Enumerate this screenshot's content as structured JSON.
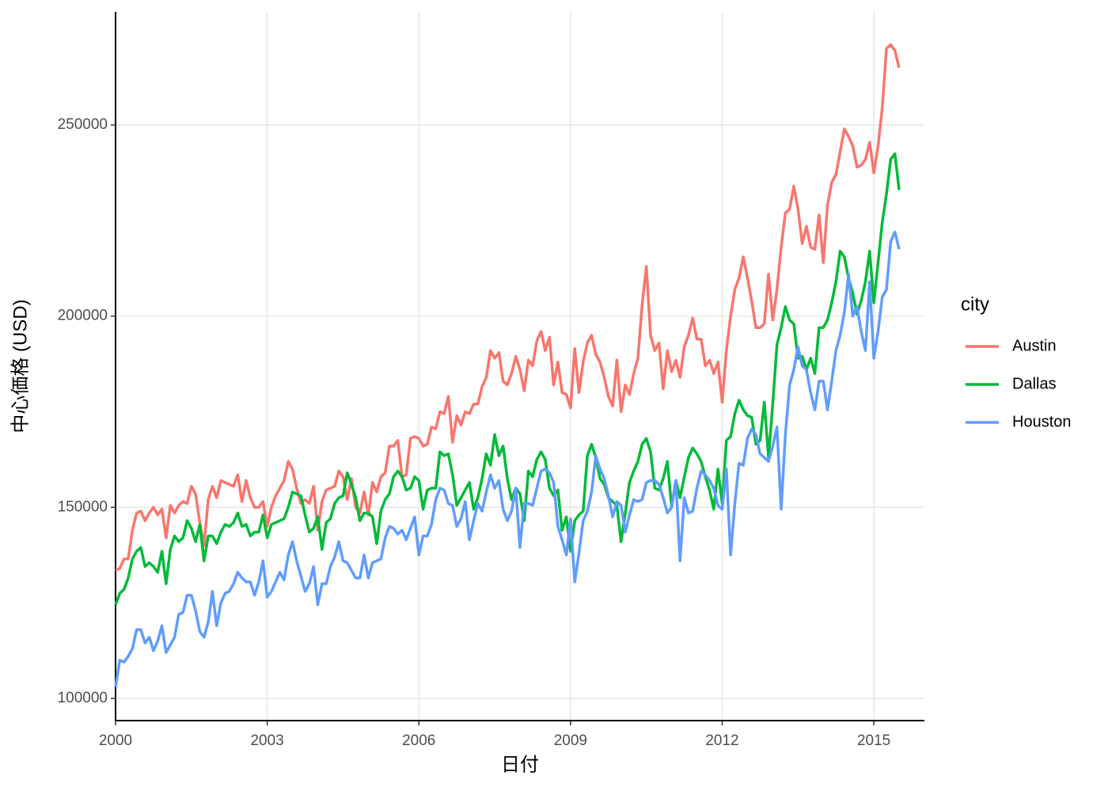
{
  "chart_data": {
    "type": "line",
    "x_label": "日付",
    "y_label": "中心価格 (USD)",
    "legend_title": "city",
    "grid": true,
    "legend_position": "right",
    "xlim": [
      2000,
      2016
    ],
    "xticks": [
      2000,
      2003,
      2006,
      2009,
      2012,
      2015
    ],
    "ylim": [
      94200,
      279600
    ],
    "yticks": [
      100000,
      150000,
      200000,
      250000
    ],
    "x": [
      2000,
      2000.0833,
      2000.1667,
      2000.25,
      2000.3333,
      2000.4167,
      2000.5,
      2000.5833,
      2000.6667,
      2000.75,
      2000.8333,
      2000.9167,
      2001,
      2001.0833,
      2001.1667,
      2001.25,
      2001.3333,
      2001.4167,
      2001.5,
      2001.5833,
      2001.6667,
      2001.75,
      2001.8333,
      2001.9167,
      2002,
      2002.0833,
      2002.1667,
      2002.25,
      2002.3333,
      2002.4167,
      2002.5,
      2002.5833,
      2002.6667,
      2002.75,
      2002.8333,
      2002.9167,
      2003,
      2003.0833,
      2003.1667,
      2003.25,
      2003.3333,
      2003.4167,
      2003.5,
      2003.5833,
      2003.6667,
      2003.75,
      2003.8333,
      2003.9167,
      2004,
      2004.0833,
      2004.1667,
      2004.25,
      2004.3333,
      2004.4167,
      2004.5,
      2004.5833,
      2004.6667,
      2004.75,
      2004.8333,
      2004.9167,
      2005,
      2005.0833,
      2005.1667,
      2005.25,
      2005.3333,
      2005.4167,
      2005.5,
      2005.5833,
      2005.6667,
      2005.75,
      2005.8333,
      2005.9167,
      2006,
      2006.0833,
      2006.1667,
      2006.25,
      2006.3333,
      2006.4167,
      2006.5,
      2006.5833,
      2006.6667,
      2006.75,
      2006.8333,
      2006.9167,
      2007,
      2007.0833,
      2007.1667,
      2007.25,
      2007.3333,
      2007.4167,
      2007.5,
      2007.5833,
      2007.6667,
      2007.75,
      2007.8333,
      2007.9167,
      2008,
      2008.0833,
      2008.1667,
      2008.25,
      2008.3333,
      2008.4167,
      2008.5,
      2008.5833,
      2008.6667,
      2008.75,
      2008.8333,
      2008.9167,
      2009,
      2009.0833,
      2009.1667,
      2009.25,
      2009.3333,
      2009.4167,
      2009.5,
      2009.5833,
      2009.6667,
      2009.75,
      2009.8333,
      2009.9167,
      2010,
      2010.0833,
      2010.1667,
      2010.25,
      2010.3333,
      2010.4167,
      2010.5,
      2010.5833,
      2010.6667,
      2010.75,
      2010.8333,
      2010.9167,
      2011,
      2011.0833,
      2011.1667,
      2011.25,
      2011.3333,
      2011.4167,
      2011.5,
      2011.5833,
      2011.6667,
      2011.75,
      2011.8333,
      2011.9167,
      2012,
      2012.0833,
      2012.1667,
      2012.25,
      2012.3333,
      2012.4167,
      2012.5,
      2012.5833,
      2012.6667,
      2012.75,
      2012.8333,
      2012.9167,
      2013,
      2013.0833,
      2013.1667,
      2013.25,
      2013.3333,
      2013.4167,
      2013.5,
      2013.5833,
      2013.6667,
      2013.75,
      2013.8333,
      2013.9167,
      2014,
      2014.0833,
      2014.1667,
      2014.25,
      2014.3333,
      2014.4167,
      2014.5,
      2014.5833,
      2014.6667,
      2014.75,
      2014.8333,
      2014.9167,
      2015,
      2015.0833,
      2015.1667,
      2015.25,
      2015.3333,
      2015.4167,
      2015.5
    ],
    "series": [
      {
        "name": "Austin",
        "color": "#F8766D",
        "values": [
          133500,
          134000,
          136500,
          136500,
          144000,
          148500,
          149000,
          146500,
          148500,
          150000,
          148000,
          149500,
          142000,
          150500,
          148500,
          150500,
          151500,
          151000,
          155500,
          153500,
          146000,
          140000,
          152000,
          155500,
          152500,
          157000,
          156500,
          156000,
          155500,
          158500,
          151500,
          157000,
          152500,
          150000,
          150000,
          151500,
          145000,
          150000,
          153000,
          155000,
          157000,
          162000,
          160000,
          155000,
          151000,
          152000,
          151000,
          155500,
          144000,
          151500,
          154500,
          155000,
          155500,
          159500,
          158000,
          152000,
          157500,
          150000,
          148500,
          154000,
          148000,
          156500,
          154000,
          158000,
          159000,
          166000,
          166000,
          167500,
          158000,
          158500,
          168000,
          168500,
          168000,
          166000,
          166500,
          171000,
          170500,
          175000,
          174500,
          179000,
          167000,
          174000,
          171500,
          175000,
          174500,
          177000,
          177000,
          181500,
          184000,
          191000,
          189000,
          190500,
          183000,
          182000,
          185000,
          189500,
          186000,
          180500,
          188500,
          187000,
          193500,
          196000,
          191000,
          194500,
          182000,
          188000,
          180000,
          179500,
          176000,
          191500,
          180000,
          188000,
          193000,
          195000,
          190000,
          188000,
          184000,
          179000,
          176500,
          188500,
          175000,
          182000,
          179500,
          185000,
          189000,
          203000,
          213000,
          195000,
          191000,
          193000,
          181000,
          191000,
          185500,
          188500,
          184000,
          192000,
          195000,
          199500,
          194000,
          194000,
          187000,
          188500,
          185000,
          188000,
          177500,
          191000,
          200000,
          207000,
          210000,
          215500,
          210000,
          204000,
          197000,
          197000,
          198000,
          211000,
          199000,
          207000,
          218000,
          227000,
          228000,
          234000,
          228000,
          219000,
          223500,
          218000,
          217500,
          226500,
          214000,
          229000,
          235000,
          237000,
          243000,
          249000,
          247000,
          244500,
          239000,
          239500,
          241000,
          245500,
          237500,
          244500,
          254500,
          270000,
          271000,
          269500,
          265000
        ]
      },
      {
        "name": "Dallas",
        "color": "#00BA38",
        "values": [
          124500,
          127500,
          128500,
          131500,
          136500,
          138500,
          139500,
          134500,
          135500,
          134500,
          133000,
          138500,
          130000,
          139000,
          142500,
          141000,
          142000,
          146500,
          144500,
          141000,
          145500,
          136000,
          142500,
          142500,
          140500,
          143500,
          145500,
          145000,
          146000,
          148500,
          145000,
          145500,
          142500,
          143500,
          143500,
          148000,
          142000,
          145500,
          146000,
          146500,
          147000,
          150000,
          154000,
          153500,
          153000,
          148000,
          143500,
          144500,
          147500,
          139000,
          146000,
          147000,
          151000,
          152500,
          153000,
          159000,
          156000,
          152500,
          146500,
          148500,
          148500,
          147500,
          140500,
          149000,
          152000,
          153500,
          158000,
          159500,
          158000,
          154500,
          155000,
          158000,
          157000,
          149500,
          154500,
          155000,
          155000,
          164500,
          163500,
          164000,
          158500,
          150500,
          152500,
          154500,
          156500,
          149500,
          152500,
          157500,
          164000,
          161000,
          169000,
          163500,
          166000,
          157500,
          152000,
          155000,
          153500,
          146500,
          159500,
          158000,
          162500,
          164500,
          162500,
          155000,
          153000,
          154500,
          144000,
          147500,
          138500,
          146500,
          148000,
          149000,
          163500,
          166500,
          163000,
          157500,
          156000,
          152500,
          151500,
          150500,
          141000,
          148500,
          156500,
          159500,
          162000,
          166500,
          168000,
          164500,
          155000,
          154500,
          157500,
          162000,
          150000,
          157000,
          152500,
          158000,
          163000,
          165500,
          164000,
          162000,
          158000,
          154500,
          149500,
          160000,
          151000,
          167500,
          168500,
          174500,
          178000,
          175500,
          174000,
          173500,
          166500,
          167500,
          177500,
          163000,
          177000,
          192500,
          197000,
          202500,
          199000,
          198000,
          189000,
          189500,
          186000,
          189000,
          185000,
          197000,
          197000,
          199000,
          203500,
          209000,
          217000,
          215500,
          210000,
          206000,
          200500,
          204000,
          209000,
          217000,
          203500,
          214000,
          224500,
          232000,
          241000,
          242500,
          233000
        ]
      },
      {
        "name": "Houston",
        "color": "#619CFF",
        "values": [
          103000,
          110000,
          109500,
          111000,
          113000,
          118000,
          118000,
          114500,
          116000,
          112500,
          115000,
          119000,
          112000,
          114000,
          116000,
          122000,
          122500,
          127000,
          127000,
          123000,
          117500,
          116000,
          120000,
          128000,
          119000,
          125000,
          127500,
          128000,
          130000,
          133000,
          131500,
          130500,
          130500,
          127000,
          130500,
          136000,
          126500,
          128000,
          130500,
          133000,
          131000,
          137500,
          141000,
          136000,
          132000,
          128000,
          130000,
          134500,
          124500,
          130000,
          130000,
          134500,
          137000,
          141000,
          136000,
          135500,
          133500,
          131500,
          131500,
          137500,
          131500,
          135500,
          136000,
          136500,
          142000,
          145000,
          144500,
          143000,
          144000,
          141500,
          144500,
          147500,
          137500,
          142500,
          142500,
          145500,
          152000,
          155000,
          154500,
          151000,
          150500,
          145000,
          147000,
          151500,
          141500,
          146500,
          151000,
          149000,
          154000,
          158500,
          155000,
          157000,
          149500,
          146500,
          149000,
          155000,
          139500,
          151000,
          151000,
          150500,
          155000,
          159500,
          160000,
          159000,
          156500,
          145000,
          141500,
          137500,
          147000,
          130500,
          138000,
          146500,
          149000,
          154000,
          163500,
          160000,
          157500,
          153000,
          147500,
          151500,
          150500,
          143500,
          148000,
          152000,
          151500,
          152000,
          156500,
          157000,
          157000,
          156000,
          152500,
          148500,
          150000,
          157000,
          136000,
          152500,
          148500,
          149000,
          155000,
          159500,
          158500,
          157000,
          155000,
          150500,
          149500,
          160000,
          137500,
          151000,
          161500,
          161000,
          168000,
          170500,
          169000,
          164000,
          163000,
          162000,
          166000,
          171000,
          149500,
          169000,
          182000,
          186000,
          192000,
          187000,
          186000,
          180000,
          175500,
          183000,
          183000,
          175500,
          183000,
          191000,
          195000,
          201000,
          211000,
          200000,
          202500,
          196000,
          191000,
          209000,
          189000,
          196000,
          205000,
          207000,
          219500,
          222000,
          217500
        ]
      }
    ]
  }
}
